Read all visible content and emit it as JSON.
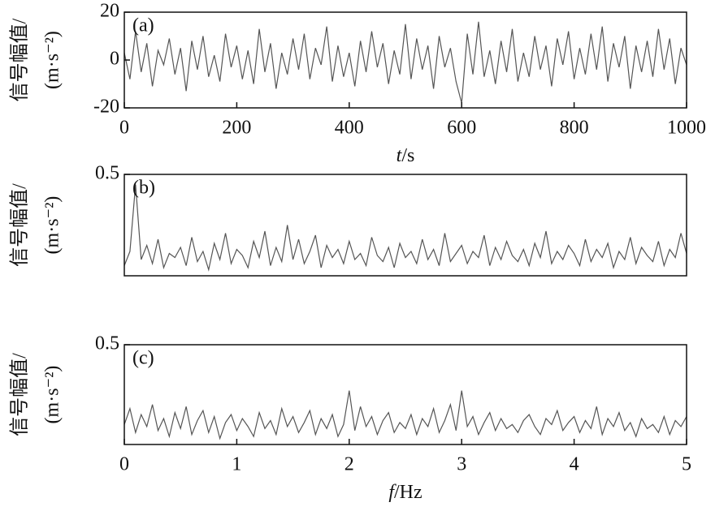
{
  "chart_data": [
    {
      "type": "line",
      "panel_label": "(a)",
      "ylabel": [
        "信号幅值/",
        "(m·s⁻²)"
      ],
      "xlabel": [
        "t",
        "/s"
      ],
      "color": "#555555",
      "xlim": [
        0,
        1000
      ],
      "ylim": [
        -20,
        20
      ],
      "xticks": [
        0,
        200,
        400,
        600,
        800,
        1000
      ],
      "yticks": [
        -20,
        0,
        20
      ],
      "x": [
        0,
        10,
        20,
        30,
        40,
        50,
        60,
        70,
        80,
        90,
        100,
        110,
        120,
        130,
        140,
        150,
        160,
        170,
        180,
        190,
        200,
        210,
        220,
        230,
        240,
        250,
        260,
        270,
        280,
        290,
        300,
        310,
        320,
        330,
        340,
        350,
        360,
        370,
        380,
        390,
        400,
        410,
        420,
        430,
        440,
        450,
        460,
        470,
        480,
        490,
        500,
        510,
        520,
        530,
        540,
        550,
        560,
        570,
        580,
        590,
        600,
        610,
        620,
        630,
        640,
        650,
        660,
        670,
        680,
        690,
        700,
        710,
        720,
        730,
        740,
        750,
        760,
        770,
        780,
        790,
        800,
        810,
        820,
        830,
        840,
        850,
        860,
        870,
        880,
        890,
        900,
        910,
        920,
        930,
        940,
        950,
        960,
        970,
        980,
        990,
        1000
      ],
      "values": [
        3,
        -8,
        12,
        -5,
        7,
        -11,
        4,
        -2,
        9,
        -6,
        5,
        -13,
        8,
        -4,
        10,
        -7,
        2,
        -9,
        11,
        -3,
        6,
        -8,
        4,
        -10,
        13,
        -5,
        7,
        -12,
        3,
        -6,
        9,
        -4,
        11,
        -8,
        5,
        -2,
        14,
        -9,
        6,
        -7,
        3,
        -11,
        8,
        -5,
        12,
        -3,
        7,
        -10,
        4,
        -6,
        15,
        -8,
        9,
        -4,
        6,
        -12,
        10,
        -3,
        5,
        -9,
        -18,
        11,
        -6,
        16,
        -7,
        4,
        -10,
        8,
        -5,
        13,
        -9,
        3,
        -7,
        10,
        -4,
        6,
        -11,
        9,
        -2,
        12,
        -8,
        5,
        -6,
        11,
        -4,
        14,
        -9,
        7,
        -3,
        10,
        -12,
        6,
        -5,
        8,
        -7,
        13,
        -4,
        9,
        -10,
        5,
        -2
      ]
    },
    {
      "type": "line",
      "panel_label": "(b)",
      "ylabel": [
        "信号幅值/",
        "(m·s⁻²)"
      ],
      "color": "#555555",
      "xlim": [
        0,
        5
      ],
      "ylim": [
        0,
        0.5
      ],
      "yticks": [
        0.5
      ],
      "x": [
        0,
        0.05,
        0.1,
        0.15,
        0.2,
        0.25,
        0.3,
        0.35,
        0.4,
        0.45,
        0.5,
        0.55,
        0.6,
        0.65,
        0.7,
        0.75,
        0.8,
        0.85,
        0.9,
        0.95,
        1,
        1.05,
        1.1,
        1.15,
        1.2,
        1.25,
        1.3,
        1.35,
        1.4,
        1.45,
        1.5,
        1.55,
        1.6,
        1.65,
        1.7,
        1.75,
        1.8,
        1.85,
        1.9,
        1.95,
        2,
        2.05,
        2.1,
        2.15,
        2.2,
        2.25,
        2.3,
        2.35,
        2.4,
        2.45,
        2.5,
        2.55,
        2.6,
        2.65,
        2.7,
        2.75,
        2.8,
        2.85,
        2.9,
        2.95,
        3,
        3.05,
        3.1,
        3.15,
        3.2,
        3.25,
        3.3,
        3.35,
        3.4,
        3.45,
        3.5,
        3.55,
        3.6,
        3.65,
        3.7,
        3.75,
        3.8,
        3.85,
        3.9,
        3.95,
        4,
        4.05,
        4.1,
        4.15,
        4.2,
        4.25,
        4.3,
        4.35,
        4.4,
        4.45,
        4.5,
        4.55,
        4.6,
        4.65,
        4.7,
        4.75,
        4.8,
        4.85,
        4.9,
        4.95,
        5
      ],
      "values": [
        0.05,
        0.12,
        0.45,
        0.08,
        0.15,
        0.06,
        0.18,
        0.04,
        0.11,
        0.09,
        0.14,
        0.05,
        0.19,
        0.07,
        0.12,
        0.03,
        0.16,
        0.08,
        0.21,
        0.06,
        0.13,
        0.1,
        0.04,
        0.17,
        0.09,
        0.22,
        0.05,
        0.14,
        0.07,
        0.25,
        0.08,
        0.18,
        0.06,
        0.12,
        0.2,
        0.04,
        0.15,
        0.09,
        0.13,
        0.06,
        0.17,
        0.08,
        0.11,
        0.05,
        0.19,
        0.1,
        0.07,
        0.14,
        0.04,
        0.16,
        0.09,
        0.12,
        0.06,
        0.18,
        0.08,
        0.13,
        0.05,
        0.21,
        0.07,
        0.11,
        0.15,
        0.06,
        0.12,
        0.09,
        0.2,
        0.05,
        0.14,
        0.08,
        0.17,
        0.1,
        0.07,
        0.13,
        0.05,
        0.16,
        0.09,
        0.22,
        0.06,
        0.12,
        0.08,
        0.15,
        0.11,
        0.05,
        0.18,
        0.07,
        0.13,
        0.09,
        0.16,
        0.04,
        0.12,
        0.08,
        0.19,
        0.06,
        0.14,
        0.1,
        0.07,
        0.17,
        0.05,
        0.13,
        0.09,
        0.21,
        0.11
      ]
    },
    {
      "type": "line",
      "panel_label": "(c)",
      "ylabel": [
        "信号幅值/",
        "(m·s⁻²)"
      ],
      "xlabel": [
        "f",
        "/Hz"
      ],
      "color": "#555555",
      "xlim": [
        0,
        5
      ],
      "ylim": [
        0,
        0.5
      ],
      "xticks": [
        0,
        1,
        2,
        3,
        4,
        5
      ],
      "yticks": [
        0.5
      ],
      "x": [
        0,
        0.05,
        0.1,
        0.15,
        0.2,
        0.25,
        0.3,
        0.35,
        0.4,
        0.45,
        0.5,
        0.55,
        0.6,
        0.65,
        0.7,
        0.75,
        0.8,
        0.85,
        0.9,
        0.95,
        1,
        1.05,
        1.1,
        1.15,
        1.2,
        1.25,
        1.3,
        1.35,
        1.4,
        1.45,
        1.5,
        1.55,
        1.6,
        1.65,
        1.7,
        1.75,
        1.8,
        1.85,
        1.9,
        1.95,
        2,
        2.05,
        2.1,
        2.15,
        2.2,
        2.25,
        2.3,
        2.35,
        2.4,
        2.45,
        2.5,
        2.55,
        2.6,
        2.65,
        2.7,
        2.75,
        2.8,
        2.85,
        2.9,
        2.95,
        3,
        3.05,
        3.1,
        3.15,
        3.2,
        3.25,
        3.3,
        3.35,
        3.4,
        3.45,
        3.5,
        3.55,
        3.6,
        3.65,
        3.7,
        3.75,
        3.8,
        3.85,
        3.9,
        3.95,
        4,
        4.05,
        4.1,
        4.15,
        4.2,
        4.25,
        4.3,
        4.35,
        4.4,
        4.45,
        4.5,
        4.55,
        4.6,
        4.65,
        4.7,
        4.75,
        4.8,
        4.85,
        4.9,
        4.95,
        5
      ],
      "values": [
        0.1,
        0.18,
        0.06,
        0.15,
        0.09,
        0.2,
        0.07,
        0.13,
        0.04,
        0.16,
        0.08,
        0.19,
        0.05,
        0.12,
        0.17,
        0.06,
        0.14,
        0.03,
        0.11,
        0.15,
        0.07,
        0.13,
        0.09,
        0.04,
        0.16,
        0.08,
        0.12,
        0.05,
        0.18,
        0.09,
        0.14,
        0.06,
        0.11,
        0.17,
        0.05,
        0.13,
        0.08,
        0.15,
        0.04,
        0.1,
        0.27,
        0.07,
        0.19,
        0.09,
        0.14,
        0.05,
        0.12,
        0.16,
        0.06,
        0.11,
        0.08,
        0.15,
        0.05,
        0.13,
        0.09,
        0.18,
        0.06,
        0.12,
        0.2,
        0.07,
        0.27,
        0.09,
        0.14,
        0.05,
        0.11,
        0.16,
        0.07,
        0.13,
        0.08,
        0.1,
        0.06,
        0.12,
        0.15,
        0.09,
        0.05,
        0.13,
        0.1,
        0.17,
        0.07,
        0.11,
        0.14,
        0.06,
        0.12,
        0.08,
        0.19,
        0.05,
        0.13,
        0.09,
        0.16,
        0.07,
        0.11,
        0.04,
        0.13,
        0.08,
        0.1,
        0.06,
        0.14,
        0.05,
        0.12,
        0.09,
        0.14
      ]
    }
  ]
}
